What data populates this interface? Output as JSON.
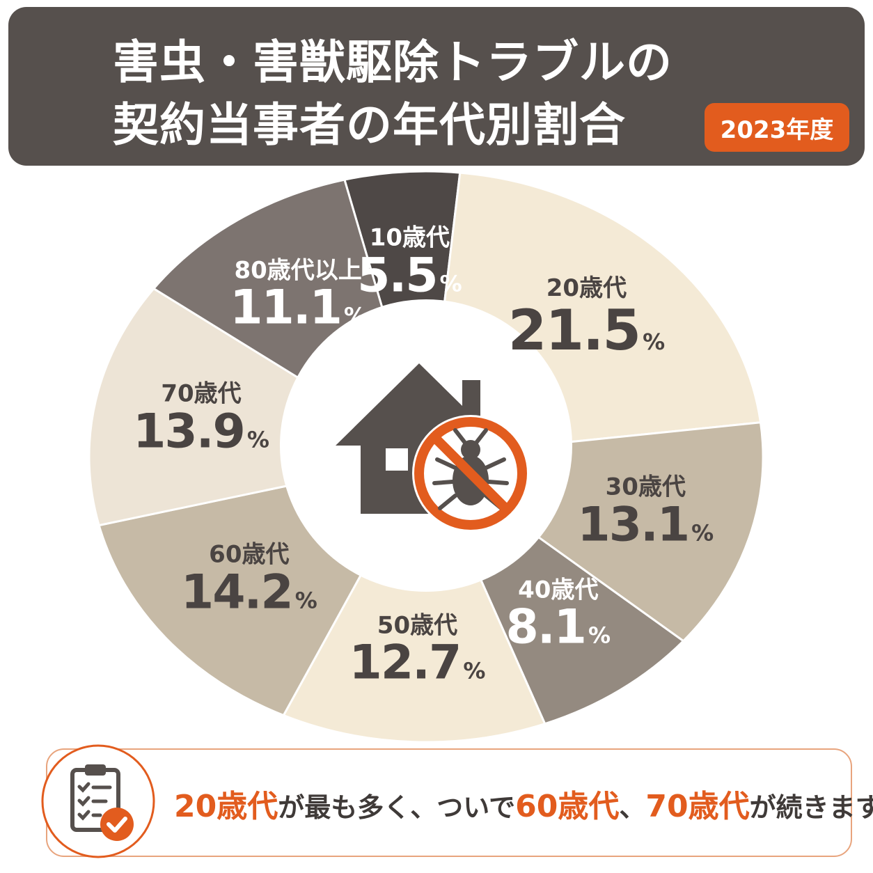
{
  "header": {
    "title_line1": "害虫・害獣駆除トラブルの",
    "title_line2": "契約当事者の年代別割合",
    "year_badge": "2023年度"
  },
  "colors": {
    "header_bg": "#56504d",
    "accent": "#e25c1e"
  },
  "chart_data": {
    "type": "pie",
    "title": "害虫・害獣駆除トラブルの契約当事者の年代別割合",
    "subtitle": "2023年度",
    "unit": "%",
    "slices": [
      {
        "label": "10歳代",
        "value": 5.5,
        "color": "#4e4846",
        "text_color": "#ffffff"
      },
      {
        "label": "20歳代",
        "value": 21.5,
        "color": "#f4ead6",
        "text_color": "#4a4442"
      },
      {
        "label": "30歳代",
        "value": 13.1,
        "color": "#c6baa6",
        "text_color": "#4a4442"
      },
      {
        "label": "40歳代",
        "value": 8.1,
        "color": "#948a80",
        "text_color": "#ffffff"
      },
      {
        "label": "50歳代",
        "value": 12.7,
        "color": "#f4ead6",
        "text_color": "#4a4442"
      },
      {
        "label": "60歳代",
        "value": 14.2,
        "color": "#c6baa6",
        "text_color": "#4a4442"
      },
      {
        "label": "70歳代",
        "value": 13.9,
        "color": "#ede4d6",
        "text_color": "#4a4442"
      },
      {
        "label": "80歳代以上",
        "value": 11.1,
        "color": "#7d7470",
        "text_color": "#ffffff"
      }
    ]
  },
  "center_icon": "house-with-no-bug-icon",
  "summary": {
    "icon": "clipboard-check-icon",
    "hl1": "20歳代",
    "t1": "が最も多く、ついで",
    "hl2": "60歳代",
    "t2": "、",
    "hl3": "70歳代",
    "t3": "が続きます。"
  }
}
